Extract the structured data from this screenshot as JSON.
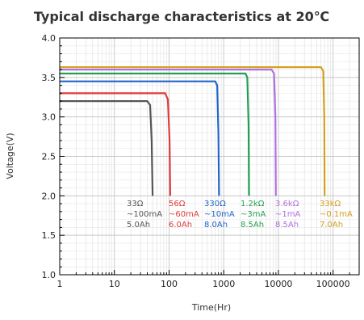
{
  "chart_data": {
    "type": "line",
    "title": "Typical discharge characteristics at 20℃",
    "xlabel": "Time(Hr)",
    "ylabel": "Voltage(V)",
    "x_scale": "log",
    "xlim": [
      1,
      300000
    ],
    "ylim": [
      1.0,
      4.0
    ],
    "x_ticks": [
      1,
      10,
      100,
      1000,
      10000,
      100000
    ],
    "x_tick_labels": [
      "1",
      "10",
      "100",
      "1000",
      "10000",
      "100000"
    ],
    "y_ticks": [
      1.0,
      1.5,
      2.0,
      2.5,
      3.0,
      3.5,
      4.0
    ],
    "y_tick_labels": [
      "1.0",
      "1.5",
      "2.0",
      "2.5",
      "3.0",
      "3.5",
      "4.0"
    ],
    "grid": true,
    "series": [
      {
        "name": "33Ω",
        "color": "#555555",
        "x": [
          1,
          40,
          45,
          48,
          50
        ],
        "y": [
          3.2,
          3.2,
          3.15,
          2.7,
          2.0
        ],
        "label_lines": [
          "33Ω",
          "~100mA",
          "5.0Ah"
        ]
      },
      {
        "name": "56Ω",
        "color": "#e23a3a",
        "x": [
          1,
          85,
          95,
          102,
          105
        ],
        "y": [
          3.3,
          3.3,
          3.22,
          2.7,
          2.0
        ],
        "label_lines": [
          "56Ω",
          "~60mA",
          "6.0Ah"
        ]
      },
      {
        "name": "330Ω",
        "color": "#2266cc",
        "x": [
          1,
          700,
          760,
          800,
          820
        ],
        "y": [
          3.45,
          3.45,
          3.4,
          2.8,
          2.0
        ],
        "label_lines": [
          "330Ω",
          "~10mA",
          "8.0Ah"
        ]
      },
      {
        "name": "1.2kΩ",
        "color": "#22a050",
        "x": [
          1,
          2500,
          2700,
          2850,
          2900
        ],
        "y": [
          3.55,
          3.55,
          3.5,
          2.9,
          2.0
        ],
        "label_lines": [
          "1.2kΩ",
          "~3mA",
          "8.5Ah"
        ]
      },
      {
        "name": "3.6kΩ",
        "color": "#b070e0",
        "x": [
          1,
          7500,
          8300,
          8800,
          9000
        ],
        "y": [
          3.6,
          3.6,
          3.55,
          3.0,
          2.0
        ],
        "label_lines": [
          "3.6kΩ",
          "~1mA",
          "8.5Ah"
        ]
      },
      {
        "name": "33kΩ",
        "color": "#d4a020",
        "x": [
          1,
          60000,
          66000,
          69000,
          70000
        ],
        "y": [
          3.63,
          3.63,
          3.58,
          3.0,
          2.0
        ],
        "label_lines": [
          "33kΩ",
          "~0.1mA",
          "7.0Ah"
        ]
      }
    ]
  }
}
